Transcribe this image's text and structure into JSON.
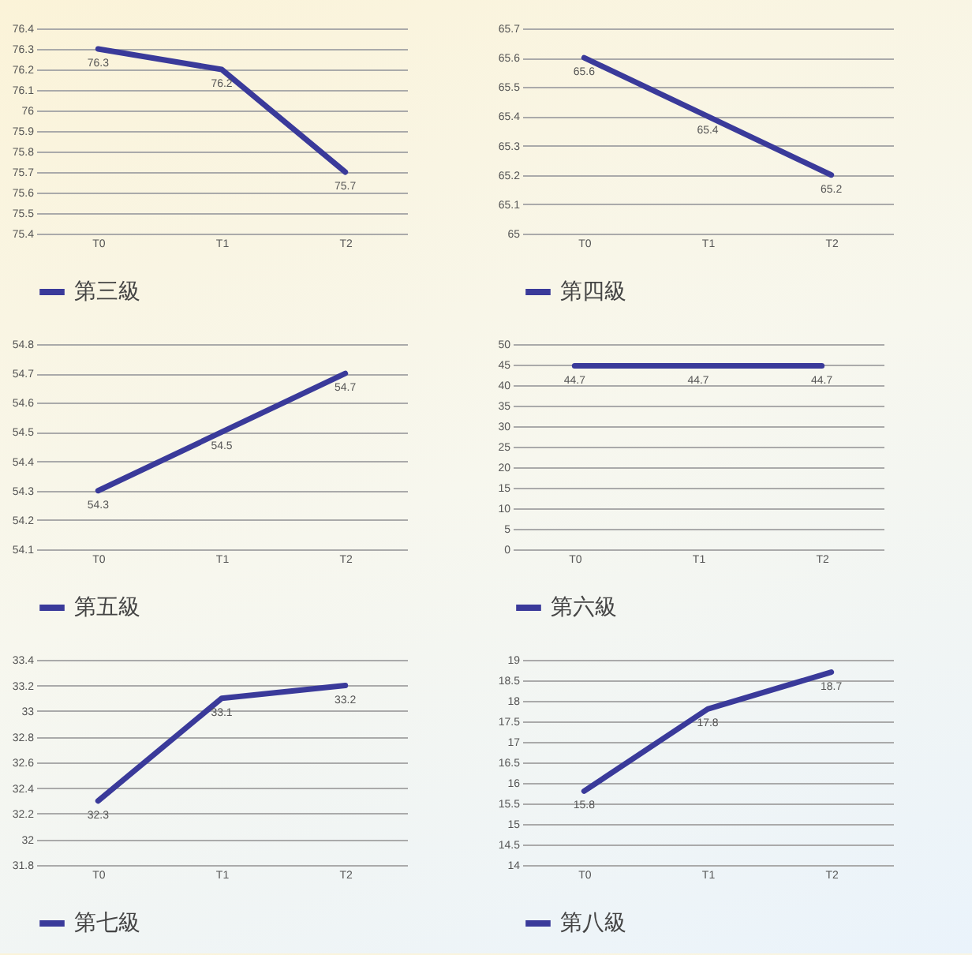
{
  "chart_data": [
    {
      "type": "line",
      "categories": [
        "T0",
        "T1",
        "T2"
      ],
      "series": [
        {
          "name": "第三級",
          "color": "#3a3a9a",
          "values": [
            76.3,
            76.2,
            75.7
          ]
        }
      ],
      "ylim": [
        75.4,
        76.4
      ],
      "yticks": [
        75.4,
        75.5,
        75.6,
        75.7,
        75.8,
        75.9,
        76,
        76.1,
        76.2,
        76.3,
        76.4
      ],
      "grid": "y",
      "legend": "bottom",
      "data_labels": true
    },
    {
      "type": "line",
      "categories": [
        "T0",
        "T1",
        "T2"
      ],
      "series": [
        {
          "name": "第四級",
          "color": "#3a3a9a",
          "values": [
            65.6,
            65.4,
            65.2
          ]
        }
      ],
      "ylim": [
        65,
        65.7
      ],
      "yticks": [
        65,
        65.1,
        65.2,
        65.3,
        65.4,
        65.5,
        65.6,
        65.7
      ],
      "grid": "y",
      "legend": "bottom",
      "data_labels": true
    },
    {
      "type": "line",
      "categories": [
        "T0",
        "T1",
        "T2"
      ],
      "series": [
        {
          "name": "第五級",
          "color": "#3a3a9a",
          "values": [
            54.3,
            54.5,
            54.7
          ]
        }
      ],
      "ylim": [
        54.1,
        54.8
      ],
      "yticks": [
        54.1,
        54.2,
        54.3,
        54.4,
        54.5,
        54.6,
        54.7,
        54.8
      ],
      "grid": "y",
      "legend": "bottom",
      "data_labels": true
    },
    {
      "type": "line",
      "categories": [
        "T0",
        "T1",
        "T2"
      ],
      "series": [
        {
          "name": "第六級",
          "color": "#3a3a9a",
          "values": [
            44.7,
            44.7,
            44.7
          ]
        }
      ],
      "ylim": [
        0,
        50
      ],
      "yticks": [
        0,
        5,
        10,
        15,
        20,
        25,
        30,
        35,
        40,
        45,
        50
      ],
      "grid": "y",
      "legend": "bottom",
      "data_labels": true
    },
    {
      "type": "line",
      "categories": [
        "T0",
        "T1",
        "T2"
      ],
      "series": [
        {
          "name": "第七級",
          "color": "#3a3a9a",
          "values": [
            32.3,
            33.1,
            33.2
          ]
        }
      ],
      "ylim": [
        31.8,
        33.4
      ],
      "yticks": [
        31.8,
        32,
        32.2,
        32.4,
        32.6,
        32.8,
        33,
        33.2,
        33.4
      ],
      "grid": "y",
      "legend": "bottom",
      "data_labels": true
    },
    {
      "type": "line",
      "categories": [
        "T0",
        "T1",
        "T2"
      ],
      "series": [
        {
          "name": "第八級",
          "color": "#3a3a9a",
          "values": [
            15.8,
            17.8,
            18.7
          ]
        }
      ],
      "ylim": [
        14,
        19
      ],
      "yticks": [
        14,
        14.5,
        15,
        15.5,
        16,
        16.5,
        17,
        17.5,
        18,
        18.5,
        19
      ],
      "grid": "y",
      "legend": "bottom",
      "data_labels": true
    }
  ]
}
